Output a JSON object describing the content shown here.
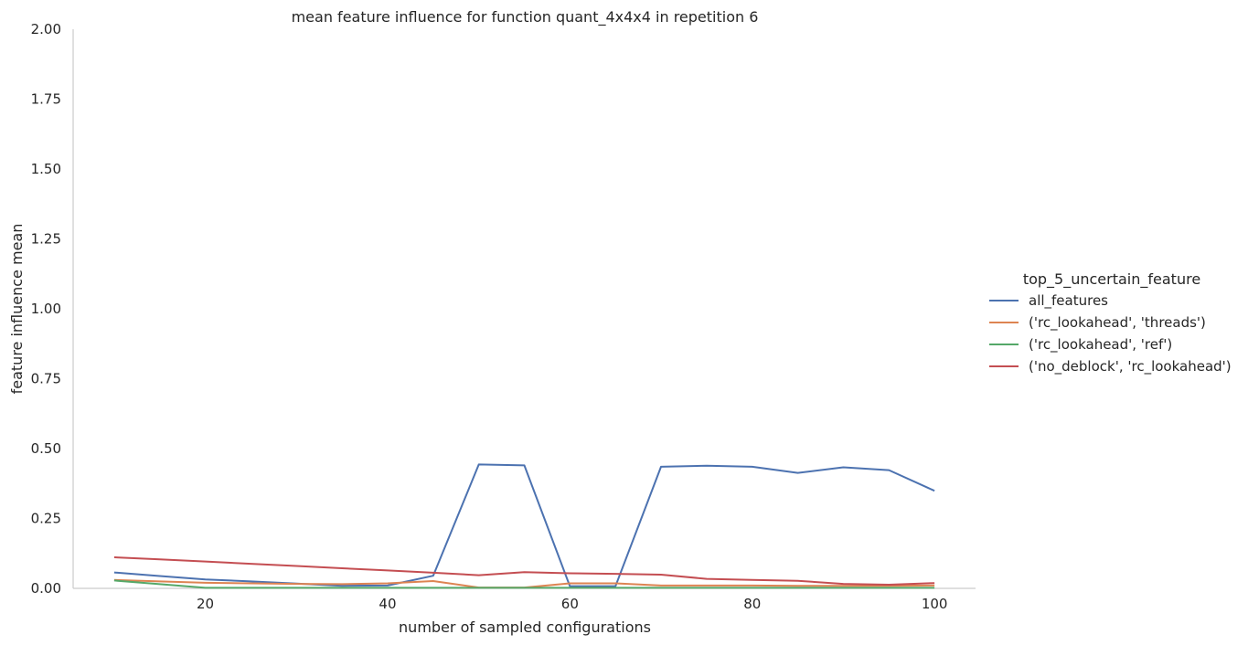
{
  "chart_data": {
    "type": "line",
    "title": "mean feature influence for function quant_4x4x4 in repetition 6",
    "xlabel": "number of sampled configurations",
    "ylabel": "feature influence mean",
    "xlim": [
      5.5,
      104.5
    ],
    "ylim": [
      0,
      2.0
    ],
    "xticks": [
      20,
      40,
      60,
      80,
      100
    ],
    "yticks": [
      "0.00",
      "0.25",
      "0.50",
      "0.75",
      "1.00",
      "1.25",
      "1.50",
      "1.75",
      "2.00"
    ],
    "grid": false,
    "legend_position": "right",
    "legend_title": "top_5_uncertain_feature",
    "x": [
      10,
      15,
      20,
      25,
      30,
      35,
      40,
      45,
      50,
      55,
      60,
      65,
      70,
      75,
      80,
      85,
      90,
      95,
      100
    ],
    "series": [
      {
        "name": "all_features",
        "color": "#4c72b0",
        "values": [
          0.057,
          0.044,
          0.032,
          0.025,
          0.017,
          0.009,
          0.01,
          0.045,
          0.443,
          0.44,
          0.008,
          0.008,
          0.435,
          0.439,
          0.435,
          0.413,
          0.433,
          0.423,
          0.349
        ]
      },
      {
        "name": "('rc_lookahead', 'threads')",
        "color": "#dd8452",
        "values": [
          0.03,
          0.025,
          0.02,
          0.018,
          0.016,
          0.015,
          0.018,
          0.026,
          0.003,
          0.003,
          0.018,
          0.018,
          0.01,
          0.01,
          0.01,
          0.009,
          0.009,
          0.009,
          0.01
        ]
      },
      {
        "name": "('rc_lookahead', 'ref')",
        "color": "#55a868",
        "values": [
          0.028,
          0.015,
          0.002,
          0.002,
          0.002,
          0.002,
          0.002,
          0.002,
          0.002,
          0.002,
          0.002,
          0.002,
          0.002,
          0.002,
          0.002,
          0.002,
          0.002,
          0.002,
          0.002
        ]
      },
      {
        "name": "('no_deblock', 'rc_lookahead')",
        "color": "#c44e52",
        "values": [
          0.111,
          0.104,
          0.096,
          0.088,
          0.08,
          0.072,
          0.064,
          0.056,
          0.047,
          0.058,
          0.054,
          0.052,
          0.049,
          0.034,
          0.03,
          0.027,
          0.016,
          0.013,
          0.019
        ]
      }
    ]
  }
}
